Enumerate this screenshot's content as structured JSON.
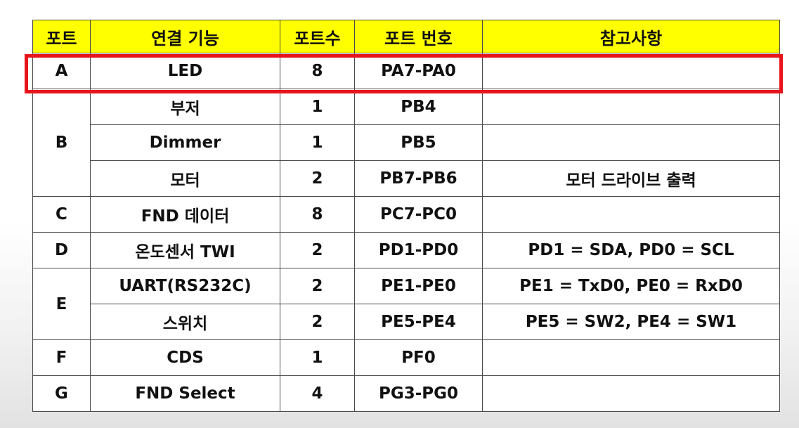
{
  "colors": {
    "header_bg": "#ffff00",
    "highlight": "#e8141b",
    "border": "#4a4a4a"
  },
  "headers": {
    "port": "포트",
    "function": "연결 기능",
    "count": "포트수",
    "number": "포트 번호",
    "note": "참고사항"
  },
  "rows": [
    {
      "port": "A",
      "items": [
        {
          "function": "LED",
          "count": "8",
          "number": "PA7-PA0",
          "note": ""
        }
      ]
    },
    {
      "port": "B",
      "items": [
        {
          "function": "부저",
          "count": "1",
          "number": "PB4",
          "note": ""
        },
        {
          "function": "Dimmer",
          "count": "1",
          "number": "PB5",
          "note": ""
        },
        {
          "function": "모터",
          "count": "2",
          "number": "PB7-PB6",
          "note": "모터 드라이브 출력"
        }
      ]
    },
    {
      "port": "C",
      "items": [
        {
          "function": "FND 데이터",
          "count": "8",
          "number": "PC7-PC0",
          "note": ""
        }
      ]
    },
    {
      "port": "D",
      "items": [
        {
          "function": "온도센서 TWI",
          "count": "2",
          "number": "PD1-PD0",
          "note": "PD1 = SDA, PD0 = SCL"
        }
      ]
    },
    {
      "port": "E",
      "items": [
        {
          "function": "UART(RS232C)",
          "count": "2",
          "number": "PE1-PE0",
          "note": "PE1 = TxD0, PE0 = RxD0"
        },
        {
          "function": "스위치",
          "count": "2",
          "number": "PE5-PE4",
          "note": "PE5 = SW2, PE4 = SW1"
        }
      ]
    },
    {
      "port": "F",
      "items": [
        {
          "function": "CDS",
          "count": "1",
          "number": "PF0",
          "note": ""
        }
      ]
    },
    {
      "port": "G",
      "items": [
        {
          "function": "FND Select",
          "count": "4",
          "number": "PG3-PG0",
          "note": ""
        }
      ]
    }
  ]
}
